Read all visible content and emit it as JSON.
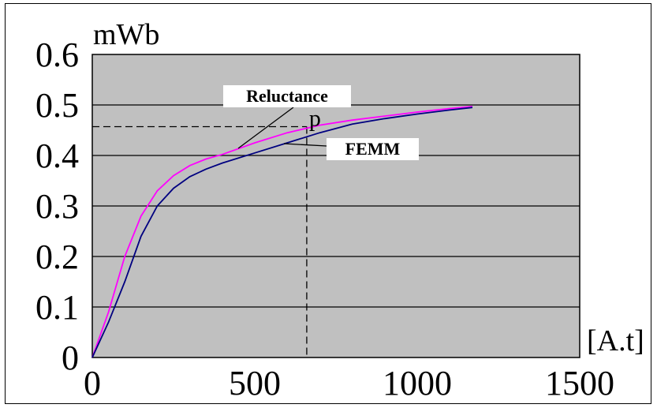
{
  "chart_data": {
    "type": "line",
    "title": "",
    "xlabel": "[A.t]",
    "ylabel": "mWb",
    "xlim": [
      0,
      1500
    ],
    "ylim": [
      0,
      0.6
    ],
    "xticks": [
      0,
      500,
      1000,
      1500
    ],
    "xtick_labels": [
      "0",
      "500",
      "1000",
      "1500"
    ],
    "yticks": [
      0,
      0.1,
      0.2,
      0.3,
      0.4,
      0.5,
      0.6
    ],
    "ytick_labels": [
      "0",
      "0.1",
      "0.2",
      "0.3",
      "0.4",
      "0.5",
      "0.6"
    ],
    "grid": "horizontal",
    "legend": "none",
    "plot_background": "#c0c0c0",
    "series": [
      {
        "name": "Reluctance",
        "color": "#ff00ff",
        "x": [
          0,
          50,
          100,
          150,
          200,
          250,
          300,
          350,
          400,
          500,
          600,
          700,
          800,
          900,
          1000,
          1100,
          1170
        ],
        "y": [
          0,
          0.09,
          0.2,
          0.28,
          0.33,
          0.36,
          0.38,
          0.393,
          0.402,
          0.425,
          0.445,
          0.46,
          0.47,
          0.478,
          0.486,
          0.493,
          0.497
        ]
      },
      {
        "name": "FEMM",
        "color": "#000080",
        "x": [
          0,
          50,
          100,
          150,
          200,
          250,
          300,
          350,
          400,
          500,
          600,
          700,
          800,
          900,
          1000,
          1100,
          1170
        ],
        "y": [
          0,
          0.07,
          0.15,
          0.24,
          0.3,
          0.335,
          0.358,
          0.373,
          0.385,
          0.405,
          0.425,
          0.445,
          0.462,
          0.473,
          0.482,
          0.49,
          0.495
        ]
      }
    ],
    "annotations": [
      {
        "text": "Reluctance",
        "points_to": "Reluctance"
      },
      {
        "text": "FEMM",
        "points_to": "FEMM"
      },
      {
        "text": "p",
        "x": 660,
        "y": 0.457,
        "guide_lines": "dashed"
      }
    ]
  }
}
